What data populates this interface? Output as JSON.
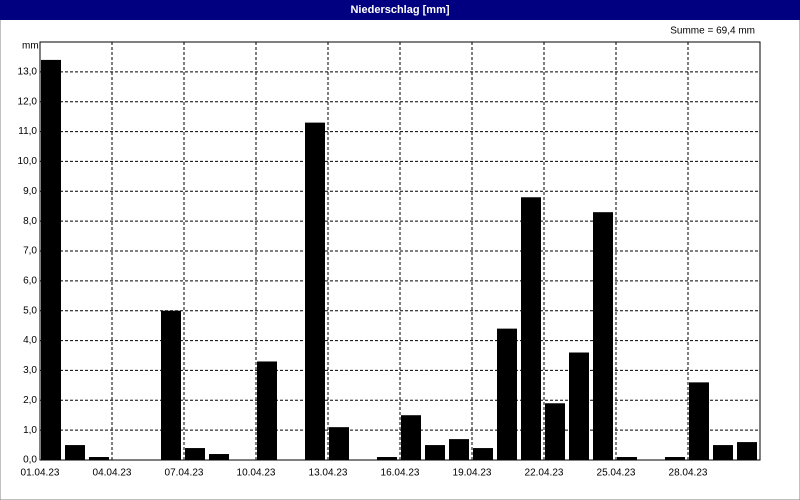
{
  "window_title": "Niederschlag [mm]",
  "chart_data": {
    "type": "bar",
    "y_label": "mm",
    "annotation": "Summe = 69,4 mm",
    "categories": [
      "01.04.23",
      null,
      null,
      "04.04.23",
      null,
      null,
      "07.04.23",
      null,
      null,
      "10.04.23",
      null,
      null,
      "13.04.23",
      null,
      null,
      "16.04.23",
      null,
      null,
      "19.04.23",
      null,
      null,
      "22.04.23",
      null,
      null,
      "25.04.23",
      null,
      null,
      "28.04.23",
      null,
      null
    ],
    "values": [
      13.4,
      0.5,
      0.1,
      0,
      0,
      5.0,
      0.4,
      0.2,
      0,
      3.3,
      0,
      11.3,
      1.1,
      0,
      0.1,
      1.5,
      0.5,
      0.7,
      0.4,
      4.4,
      8.8,
      1.9,
      3.6,
      8.3,
      0.1,
      0,
      0.1,
      2.6,
      0.5,
      0.6
    ],
    "color": "#000000",
    "ylim": [
      0,
      14
    ],
    "yticks": [
      {
        "value": 0,
        "label": "0,0"
      },
      {
        "value": 1,
        "label": "1,0"
      },
      {
        "value": 2,
        "label": "2,0"
      },
      {
        "value": 3,
        "label": "3,0"
      },
      {
        "value": 4,
        "label": "4,0"
      },
      {
        "value": 5,
        "label": "5,0"
      },
      {
        "value": 6,
        "label": "6,0"
      },
      {
        "value": 7,
        "label": "7,0"
      },
      {
        "value": 8,
        "label": "8,0"
      },
      {
        "value": 9,
        "label": "9,0"
      },
      {
        "value": 10,
        "label": "10,0"
      },
      {
        "value": 11,
        "label": "11,0"
      },
      {
        "value": 12,
        "label": "12,0"
      },
      {
        "value": 13,
        "label": "13,0"
      }
    ],
    "grid": true
  }
}
